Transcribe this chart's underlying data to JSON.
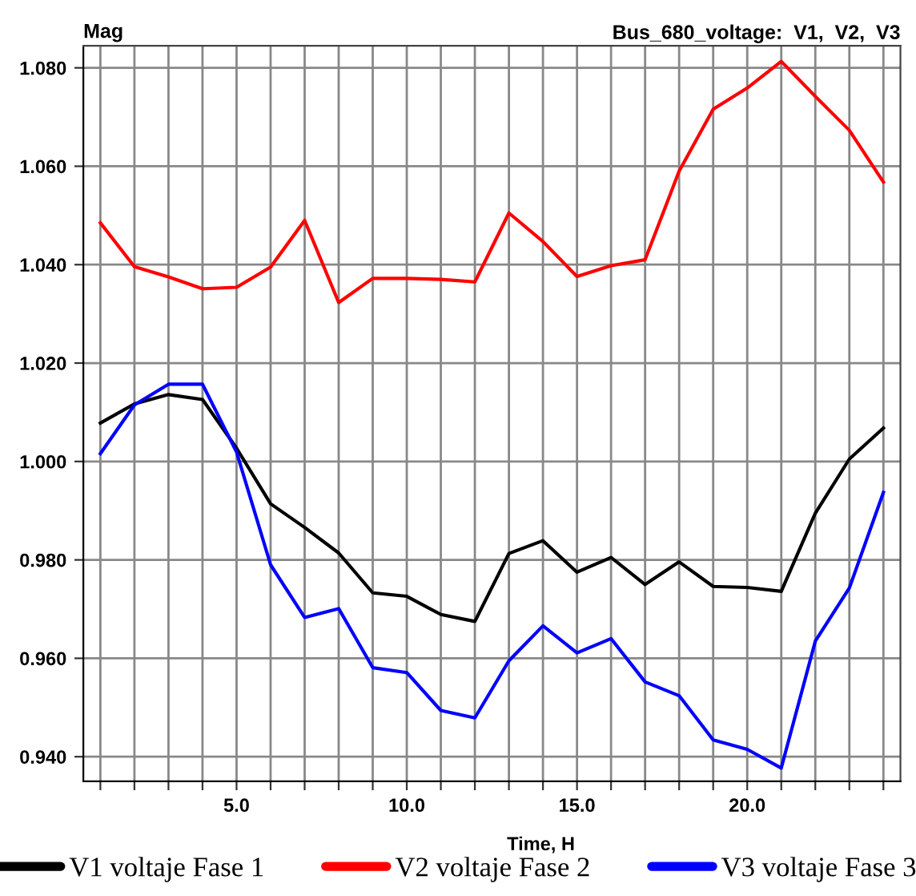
{
  "chart_data": {
    "type": "line",
    "title": "Bus_680_voltage:  V1,  V2,  V3",
    "ylabel": "Mag",
    "xlabel": "Time, H",
    "x": [
      1,
      2,
      3,
      4,
      5,
      6,
      7,
      8,
      9,
      10,
      11,
      12,
      13,
      14,
      15,
      16,
      17,
      18,
      19,
      20,
      21,
      22,
      23,
      24
    ],
    "series": [
      {
        "name": "V1 voltaje Fase 1",
        "color": "#000000",
        "values": [
          1.0078,
          1.0117,
          1.0136,
          1.0126,
          1.0027,
          0.9914,
          0.9866,
          0.9814,
          0.9733,
          0.9726,
          0.9689,
          0.9675,
          0.9813,
          0.9839,
          0.9775,
          0.9805,
          0.975,
          0.9796,
          0.9746,
          0.9744,
          0.9736,
          0.9895,
          1.0005,
          1.0068
        ]
      },
      {
        "name": "V2 voltaje Fase 2",
        "color": "#ff0000",
        "values": [
          1.0485,
          1.0396,
          1.0375,
          1.0351,
          1.0354,
          1.0395,
          1.049,
          1.0323,
          1.0372,
          1.0372,
          1.037,
          1.0365,
          1.0505,
          1.0447,
          1.0376,
          1.0398,
          1.041,
          1.059,
          1.0716,
          1.0759,
          1.0813,
          1.0742,
          1.0673,
          1.0568
        ]
      },
      {
        "name": "V3 voltaje Fase 3",
        "color": "#0000ff",
        "values": [
          1.0016,
          1.0115,
          1.0157,
          1.0157,
          1.0019,
          0.979,
          0.9683,
          0.9701,
          0.9581,
          0.9571,
          0.9494,
          0.9479,
          0.9595,
          0.9666,
          0.9611,
          0.964,
          0.9552,
          0.9524,
          0.9434,
          0.9415,
          0.9377,
          0.9635,
          0.9743,
          0.9937
        ]
      }
    ],
    "xlim": [
      0.5,
      24.5
    ],
    "ylim": [
      0.935,
      1.0845
    ],
    "xticks": [
      {
        "value": 1,
        "label": null
      },
      {
        "value": 2,
        "label": null
      },
      {
        "value": 3,
        "label": null
      },
      {
        "value": 4,
        "label": null
      },
      {
        "value": 5,
        "label": "5.0"
      },
      {
        "value": 6,
        "label": null
      },
      {
        "value": 7,
        "label": null
      },
      {
        "value": 8,
        "label": null
      },
      {
        "value": 9,
        "label": null
      },
      {
        "value": 10,
        "label": "10.0"
      },
      {
        "value": 11,
        "label": null
      },
      {
        "value": 12,
        "label": null
      },
      {
        "value": 13,
        "label": null
      },
      {
        "value": 14,
        "label": null
      },
      {
        "value": 15,
        "label": "15.0"
      },
      {
        "value": 16,
        "label": null
      },
      {
        "value": 17,
        "label": null
      },
      {
        "value": 18,
        "label": null
      },
      {
        "value": 19,
        "label": null
      },
      {
        "value": 20,
        "label": "20.0"
      },
      {
        "value": 21,
        "label": null
      },
      {
        "value": 22,
        "label": null
      },
      {
        "value": 23,
        "label": null
      },
      {
        "value": 24,
        "label": null
      }
    ],
    "yticks": [
      {
        "value": 0.94,
        "label": "0.940"
      },
      {
        "value": 0.96,
        "label": "0.960"
      },
      {
        "value": 0.98,
        "label": "0.980"
      },
      {
        "value": 1.0,
        "label": "1.000"
      },
      {
        "value": 1.02,
        "label": "1.020"
      },
      {
        "value": 1.04,
        "label": "1.040"
      },
      {
        "value": 1.06,
        "label": "1.060"
      },
      {
        "value": 1.08,
        "label": "1.080"
      }
    ],
    "grid": true,
    "legend": "bottom",
    "marker": "none",
    "line_style": "solid"
  }
}
